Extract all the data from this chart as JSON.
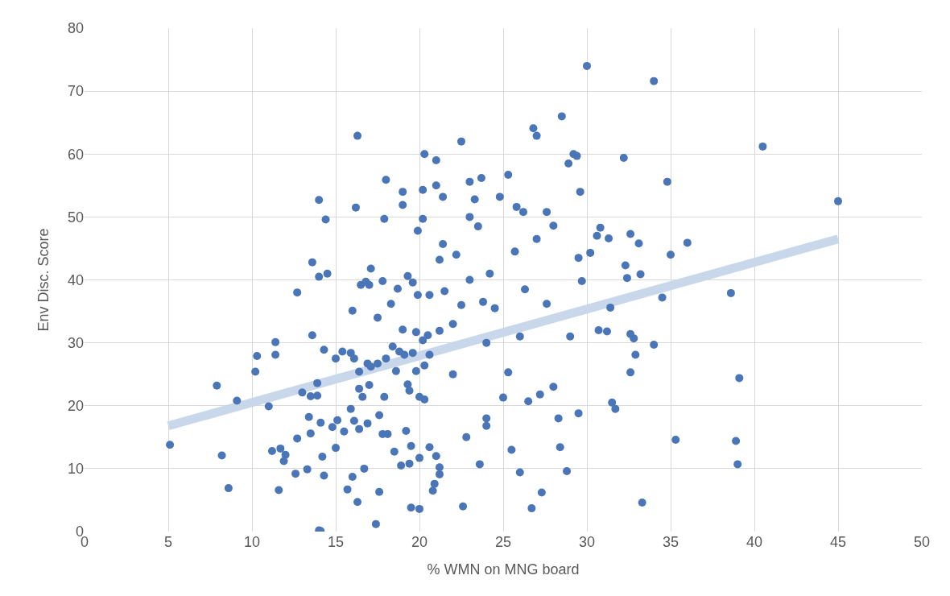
{
  "chart_data": {
    "type": "scatter",
    "xlabel": "% WMN on MNG board",
    "ylabel": "Env Disc. Score",
    "xlim": [
      0,
      50
    ],
    "ylim": [
      0,
      80
    ],
    "xticks": [
      0,
      5,
      10,
      15,
      20,
      25,
      30,
      35,
      40,
      45,
      50
    ],
    "yticks": [
      0,
      10,
      20,
      30,
      40,
      50,
      60,
      70,
      80
    ],
    "grid": true,
    "series": [
      {
        "marker": "circle",
        "color": "#4a76b8",
        "x": [
          5.1,
          7.9,
          8.2,
          8.6,
          9.1,
          10.2,
          10.3,
          11,
          11.2,
          11.4,
          11.4,
          11.6,
          11.7,
          11.9,
          12,
          12.6,
          12.7,
          12.7,
          13,
          13.3,
          13.4,
          13.5,
          13.5,
          13.6,
          13.6,
          13.9,
          13.9,
          14,
          14.1,
          14,
          14,
          14.1,
          14.2,
          14.3,
          14.3,
          14.4,
          14.5,
          14.8,
          15,
          15.1,
          15,
          15.4,
          15.5,
          15.7,
          15.9,
          15.9,
          16,
          16,
          16.1,
          16.1,
          16.2,
          16.3,
          16.3,
          16.4,
          16.4,
          16.4,
          16.5,
          16.6,
          16.7,
          16.8,
          16.9,
          16.9,
          17,
          17,
          17.1,
          17.1,
          17.4,
          17.5,
          17.5,
          17.6,
          17.6,
          17.8,
          17.8,
          17.9,
          17.9,
          18,
          18,
          18.1,
          18.3,
          18.4,
          18.5,
          18.6,
          18.7,
          18.8,
          18.9,
          19,
          19,
          19,
          19.1,
          19.2,
          19.3,
          19.3,
          19.4,
          19.4,
          19.5,
          19.5,
          19.6,
          19.6,
          19.8,
          19.8,
          19.9,
          19.9,
          20,
          20,
          20,
          20.2,
          20.2,
          20.2,
          20.3,
          20.3,
          20.3,
          20.5,
          20.6,
          20.6,
          20.6,
          20.8,
          20.9,
          21,
          21,
          21,
          21.2,
          21.2,
          21.2,
          21.2,
          21.4,
          21.4,
          21.5,
          22,
          22,
          22.2,
          22.5,
          22.5,
          22.6,
          22.8,
          23,
          23,
          23,
          23.3,
          23.5,
          23.6,
          23.7,
          23.8,
          24,
          24,
          24,
          24.2,
          24.5,
          24.8,
          25,
          25.3,
          25.3,
          25.5,
          25.7,
          25.8,
          26,
          26,
          26.2,
          26.3,
          26.5,
          26.7,
          26.8,
          27,
          27,
          27.2,
          27.3,
          27.6,
          27.6,
          28,
          28,
          28.3,
          28.4,
          28.5,
          28.8,
          28.9,
          29,
          29.2,
          29.4,
          29.5,
          29.5,
          29.6,
          29.7,
          30,
          30.2,
          30.6,
          30.8,
          30.7,
          31.2,
          31.3,
          31.4,
          31.5,
          31.7,
          32.2,
          32.3,
          32.4,
          32.6,
          32.6,
          32.6,
          32.8,
          32.9,
          33.1,
          33.2,
          33.3,
          34,
          34,
          34.5,
          34.8,
          35,
          35.3,
          36,
          38.6,
          38.9,
          39,
          39.1,
          40.5,
          45
        ],
        "values": [
          13.8,
          23.2,
          12.1,
          6.9,
          20.8,
          25.4,
          27.9,
          19.9,
          12.8,
          30.1,
          28.1,
          6.6,
          13.2,
          11.2,
          12.2,
          9.2,
          14.8,
          38,
          22.1,
          9.9,
          18.2,
          15.6,
          21.5,
          31.2,
          42.8,
          23.6,
          21.6,
          0.2,
          0.1,
          40.5,
          52.7,
          17.3,
          11.9,
          8.9,
          28.9,
          49.6,
          41,
          16.6,
          13.3,
          17.7,
          27.5,
          28.6,
          15.9,
          6.7,
          28.4,
          19.5,
          35.1,
          8.7,
          27.5,
          17.6,
          51.5,
          4.7,
          62.9,
          22.7,
          16.3,
          25.4,
          39.2,
          21.4,
          10,
          39.7,
          26.7,
          17.2,
          23.3,
          39.2,
          26.2,
          41.8,
          1.2,
          34,
          26.7,
          18.5,
          6.3,
          39.8,
          15.5,
          49.7,
          21.4,
          27.5,
          55.9,
          15.5,
          36.2,
          29.4,
          12.7,
          25.5,
          38.6,
          28.6,
          10.5,
          54,
          51.9,
          32.1,
          28.1,
          16,
          40.6,
          23.4,
          22.4,
          10.8,
          3.8,
          13.6,
          28.4,
          39.6,
          31.7,
          25.5,
          47.8,
          37.6,
          11.7,
          21.4,
          3.6,
          54.3,
          49.7,
          30.4,
          60,
          26.4,
          21,
          31.2,
          13.4,
          37.6,
          28.1,
          6.5,
          7.6,
          59,
          55,
          12,
          10.2,
          9.1,
          31.9,
          43.2,
          45.7,
          53.2,
          38.2,
          33,
          25,
          44,
          62,
          36,
          4,
          15,
          50,
          55.6,
          40,
          52.8,
          48.5,
          10.7,
          56.2,
          36.5,
          30,
          16.8,
          18,
          41,
          35.5,
          53.2,
          21.3,
          56.7,
          25.3,
          13,
          44.5,
          51.6,
          31,
          9.4,
          50.8,
          38.5,
          20.7,
          3.7,
          64.1,
          62.9,
          46.5,
          21.8,
          6.2,
          50.8,
          36.2,
          48.6,
          23,
          18,
          13.4,
          66,
          9.6,
          58.5,
          31,
          60,
          59.7,
          43.5,
          18.8,
          54,
          39.8,
          74,
          44.3,
          47,
          48.3,
          32,
          31.8,
          46.6,
          35.6,
          20.5,
          19.5,
          59.4,
          42.3,
          40.3,
          47.3,
          31.4,
          25.3,
          30.7,
          28.1,
          45.8,
          40.9,
          4.6,
          71.6,
          29.7,
          37.2,
          55.6,
          44,
          14.6,
          45.9,
          37.9,
          14.4,
          10.7,
          24.4,
          61.2,
          52.5
        ]
      },
      {
        "type": "line",
        "marker": "none",
        "color": "#c9d7eb",
        "x": [
          5,
          45
        ],
        "values": [
          16.8,
          46.5
        ]
      }
    ]
  }
}
